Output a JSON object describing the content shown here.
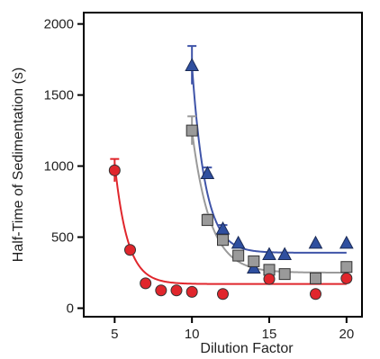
{
  "chart_data": {
    "type": "scatter",
    "xlabel": "Dilution Factor",
    "ylabel": "Half-Time of Sedimentation (s)",
    "xlim": [
      3,
      21
    ],
    "ylim": [
      -60,
      2080
    ],
    "xticks": [
      5,
      10,
      15,
      20
    ],
    "yticks": [
      0,
      500,
      1000,
      1500,
      2000
    ],
    "grid": false,
    "legend": "none",
    "series": [
      {
        "marker": "triangle",
        "color": "#2f4f9f",
        "line_color": "#3f54a8",
        "points": [
          {
            "x": 10,
            "y": 1710,
            "err": 135
          },
          {
            "x": 11,
            "y": 950,
            "err": 40
          },
          {
            "x": 12,
            "y": 560,
            "err": 25
          },
          {
            "x": 13,
            "y": 460,
            "err": 0
          },
          {
            "x": 14,
            "y": 285,
            "err": 0
          },
          {
            "x": 15,
            "y": 380,
            "err": 0
          },
          {
            "x": 16,
            "y": 380,
            "err": 0
          },
          {
            "x": 18,
            "y": 460,
            "err": 0
          },
          {
            "x": 20,
            "y": 460,
            "err": 0
          }
        ],
        "fit": {
          "asymptote": 390,
          "amplitude": 1320,
          "rate": 1.15,
          "x0": 10,
          "xmax": 20
        }
      },
      {
        "marker": "square",
        "color": "#9a9a9a",
        "line_color": "#9a9a9a",
        "points": [
          {
            "x": 10,
            "y": 1250,
            "err": 100
          },
          {
            "x": 11,
            "y": 620,
            "err": 40
          },
          {
            "x": 12,
            "y": 480,
            "err": 0
          },
          {
            "x": 13,
            "y": 370,
            "err": 0
          },
          {
            "x": 14,
            "y": 330,
            "err": 0
          },
          {
            "x": 15,
            "y": 270,
            "err": 0
          },
          {
            "x": 16,
            "y": 240,
            "err": 0
          },
          {
            "x": 18,
            "y": 210,
            "err": 0
          },
          {
            "x": 20,
            "y": 290,
            "err": 0
          }
        ],
        "fit": {
          "asymptote": 250,
          "amplitude": 1000,
          "rate": 0.85,
          "x0": 10,
          "xmax": 20
        }
      },
      {
        "marker": "circle",
        "color": "#e0262c",
        "line_color": "#e0262c",
        "points": [
          {
            "x": 5,
            "y": 970,
            "err": 80
          },
          {
            "x": 6,
            "y": 410,
            "err": 0
          },
          {
            "x": 7,
            "y": 175,
            "err": 0
          },
          {
            "x": 8,
            "y": 125,
            "err": 0
          },
          {
            "x": 9,
            "y": 125,
            "err": 0
          },
          {
            "x": 10,
            "y": 115,
            "err": 0
          },
          {
            "x": 12,
            "y": 100,
            "err": 0
          },
          {
            "x": 15,
            "y": 205,
            "err": 0
          },
          {
            "x": 18,
            "y": 100,
            "err": 0
          },
          {
            "x": 20,
            "y": 210,
            "err": 0
          }
        ],
        "fit": {
          "asymptote": 170,
          "amplitude": 850,
          "rate": 1.2,
          "x0": 5,
          "xmax": 20
        }
      }
    ]
  }
}
